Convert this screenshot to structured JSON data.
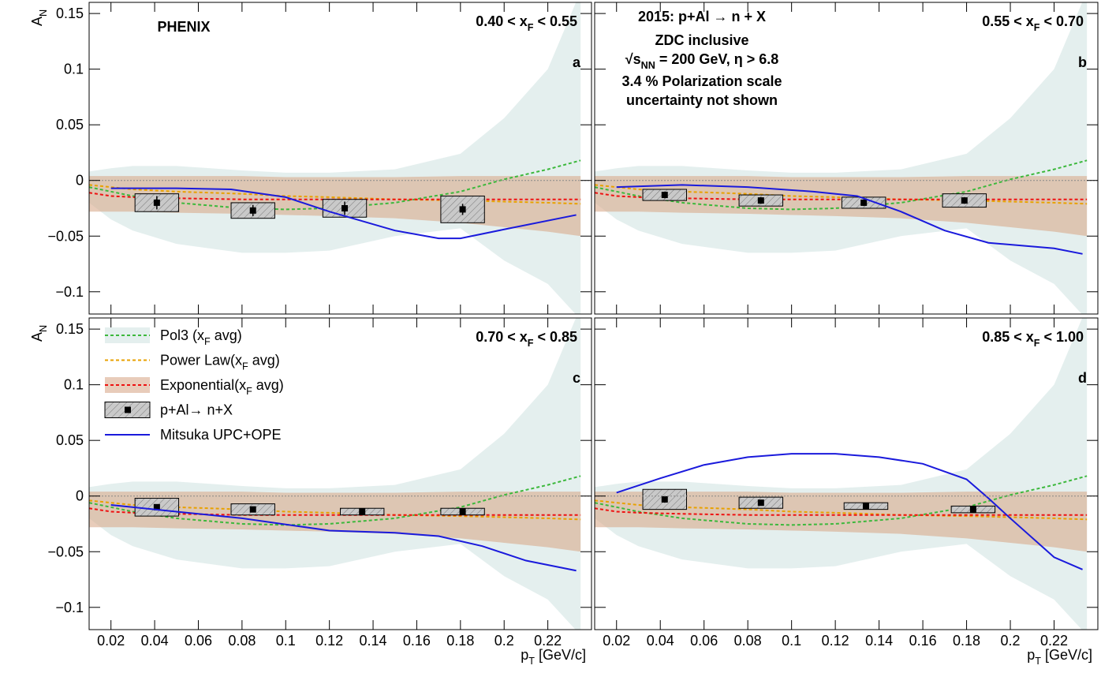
{
  "chart_data": {
    "type": "errorbar",
    "xlim": [
      0.01,
      0.24
    ],
    "ylim": [
      -0.12,
      0.16
    ],
    "xticks": [
      0.02,
      0.04,
      0.06,
      0.08,
      0.1,
      0.12,
      0.14,
      0.16,
      0.18,
      0.2,
      0.22
    ],
    "yticks": [
      {
        "value": -0.1,
        "label": "−0.1"
      },
      {
        "value": -0.05,
        "label": "−0.05"
      },
      0,
      0.05,
      0.1,
      0.15
    ],
    "xlabel": {
      "pre": "p",
      "sub": "T",
      "post": " [GeV/c]"
    },
    "ylabel": {
      "pre": "A",
      "sub": "N"
    },
    "data_name": "p+Al→ n+X",
    "model_name": "Mitsuka UPC+OPE",
    "model_color": "#1a1adc",
    "fit_x": [
      0.01,
      0.02,
      0.03,
      0.05,
      0.08,
      0.1,
      0.12,
      0.15,
      0.18,
      0.2,
      0.22,
      0.235
    ],
    "fits": [
      {
        "name": {
          "pre": "Pol3 (x",
          "sub": "F",
          "post": " avg)"
        },
        "color": "#3cb83c",
        "band_color": "#d2e5e2",
        "values": [
          -0.006,
          -0.01,
          -0.014,
          -0.02,
          -0.025,
          -0.026,
          -0.025,
          -0.02,
          -0.01,
          0.001,
          0.01,
          0.018
        ],
        "band": {
          "upper": [
            0.008,
            0.011,
            0.013,
            0.013,
            0.009,
            0.007,
            0.007,
            0.01,
            0.024,
            0.056,
            0.1,
            0.17
          ],
          "lower": [
            -0.02,
            -0.035,
            -0.045,
            -0.057,
            -0.065,
            -0.065,
            -0.063,
            -0.05,
            -0.043,
            -0.072,
            -0.093,
            -0.125
          ]
        }
      },
      {
        "name": {
          "pre": "Power Law(x",
          "sub": "F",
          "post": " avg)"
        },
        "color": "#e8a100",
        "values": [
          -0.004,
          -0.006,
          -0.008,
          -0.01,
          -0.012,
          -0.014,
          -0.015,
          -0.017,
          -0.018,
          -0.019,
          -0.02,
          -0.021
        ]
      },
      {
        "name": {
          "pre": "Exponential(x",
          "sub": "F",
          "post": " avg)"
        },
        "color": "#ee1111",
        "band_color": "#d8aa8c",
        "values": [
          -0.011,
          -0.014,
          -0.015,
          -0.016,
          -0.017,
          -0.017,
          -0.017,
          -0.017,
          -0.017,
          -0.017,
          -0.017,
          -0.017
        ],
        "band": {
          "upper": [
            0.004,
            0.004,
            0.004,
            0.004,
            0.004,
            0.003,
            0.003,
            0.003,
            0.004,
            0.004,
            0.004,
            0.004
          ],
          "lower": [
            -0.028,
            -0.028,
            -0.028,
            -0.029,
            -0.03,
            -0.031,
            -0.032,
            -0.034,
            -0.038,
            -0.042,
            -0.046,
            -0.05
          ]
        }
      }
    ],
    "panels": [
      {
        "letter": "a",
        "experiment": "PHENIX",
        "range": {
          "pre": "0.40 < x",
          "sub": "F",
          "post": " < 0.55"
        },
        "points": {
          "x": [
            0.041,
            0.085,
            0.127,
            0.181
          ],
          "xerr": [
            0.01,
            0.01,
            0.01,
            0.01
          ],
          "y": [
            -0.02,
            -0.027,
            -0.025,
            -0.026
          ],
          "stat": [
            0.006,
            0.005,
            0.006,
            0.005
          ],
          "sys": [
            0.008,
            0.007,
            0.008,
            0.012
          ]
        },
        "model": {
          "x": [
            0.02,
            0.05,
            0.075,
            0.1,
            0.12,
            0.15,
            0.17,
            0.18,
            0.2,
            0.233
          ],
          "values": [
            -0.007,
            -0.007,
            -0.008,
            -0.015,
            -0.028,
            -0.045,
            -0.052,
            -0.052,
            -0.044,
            -0.031
          ]
        }
      },
      {
        "letter": "b",
        "range": {
          "pre": "0.55 < x",
          "sub": "F",
          "post": " < 0.70"
        },
        "notes": [
          "2015: p+Al  → n + X",
          "ZDC inclusive",
          {
            "pre": "√s",
            "sub": "NN",
            "post": " = 200 GeV,  η > 6.8"
          },
          "3.4 % Polarization scale",
          "uncertainty not shown"
        ],
        "points": {
          "x": [
            0.042,
            0.086,
            0.133,
            0.179
          ],
          "xerr": [
            0.01,
            0.01,
            0.01,
            0.01
          ],
          "y": [
            -0.013,
            -0.018,
            -0.02,
            -0.018
          ],
          "stat": [
            0.003,
            0.003,
            0.003,
            0.003
          ],
          "sys": [
            0.005,
            0.005,
            0.005,
            0.006
          ]
        },
        "model": {
          "x": [
            0.02,
            0.05,
            0.08,
            0.11,
            0.13,
            0.15,
            0.17,
            0.19,
            0.22,
            0.233
          ],
          "values": [
            -0.006,
            -0.004,
            -0.006,
            -0.01,
            -0.014,
            -0.028,
            -0.045,
            -0.056,
            -0.061,
            -0.066
          ]
        }
      },
      {
        "letter": "c",
        "legend": "upper left",
        "range": {
          "pre": "0.70 < x",
          "sub": "F",
          "post": " < 0.85"
        },
        "points": {
          "x": [
            0.041,
            0.085,
            0.135,
            0.181
          ],
          "xerr": [
            0.01,
            0.01,
            0.01,
            0.01
          ],
          "y": [
            -0.01,
            -0.012,
            -0.014,
            -0.014
          ],
          "stat": [
            0.002,
            0.002,
            0.002,
            0.002
          ],
          "sys": [
            0.008,
            0.005,
            0.003,
            0.003
          ]
        },
        "model": {
          "x": [
            0.02,
            0.05,
            0.08,
            0.12,
            0.15,
            0.17,
            0.19,
            0.21,
            0.233
          ],
          "values": [
            -0.008,
            -0.014,
            -0.02,
            -0.031,
            -0.033,
            -0.036,
            -0.045,
            -0.058,
            -0.067
          ]
        }
      },
      {
        "letter": "d",
        "range": {
          "pre": "0.85 < x",
          "sub": "F",
          "post": " < 1.00"
        },
        "points": {
          "x": [
            0.042,
            0.086,
            0.134,
            0.183
          ],
          "xerr": [
            0.01,
            0.01,
            0.01,
            0.01
          ],
          "y": [
            -0.003,
            -0.006,
            -0.009,
            -0.012
          ],
          "stat": [
            0.003,
            0.002,
            0.002,
            0.003
          ],
          "sys": [
            0.009,
            0.005,
            0.003,
            0.003
          ]
        },
        "model": {
          "x": [
            0.02,
            0.04,
            0.06,
            0.08,
            0.1,
            0.12,
            0.14,
            0.16,
            0.18,
            0.19,
            0.2,
            0.22,
            0.233
          ],
          "values": [
            0.003,
            0.016,
            0.028,
            0.035,
            0.038,
            0.038,
            0.035,
            0.029,
            0.015,
            -0.002,
            -0.02,
            -0.055,
            -0.066
          ]
        }
      }
    ]
  }
}
